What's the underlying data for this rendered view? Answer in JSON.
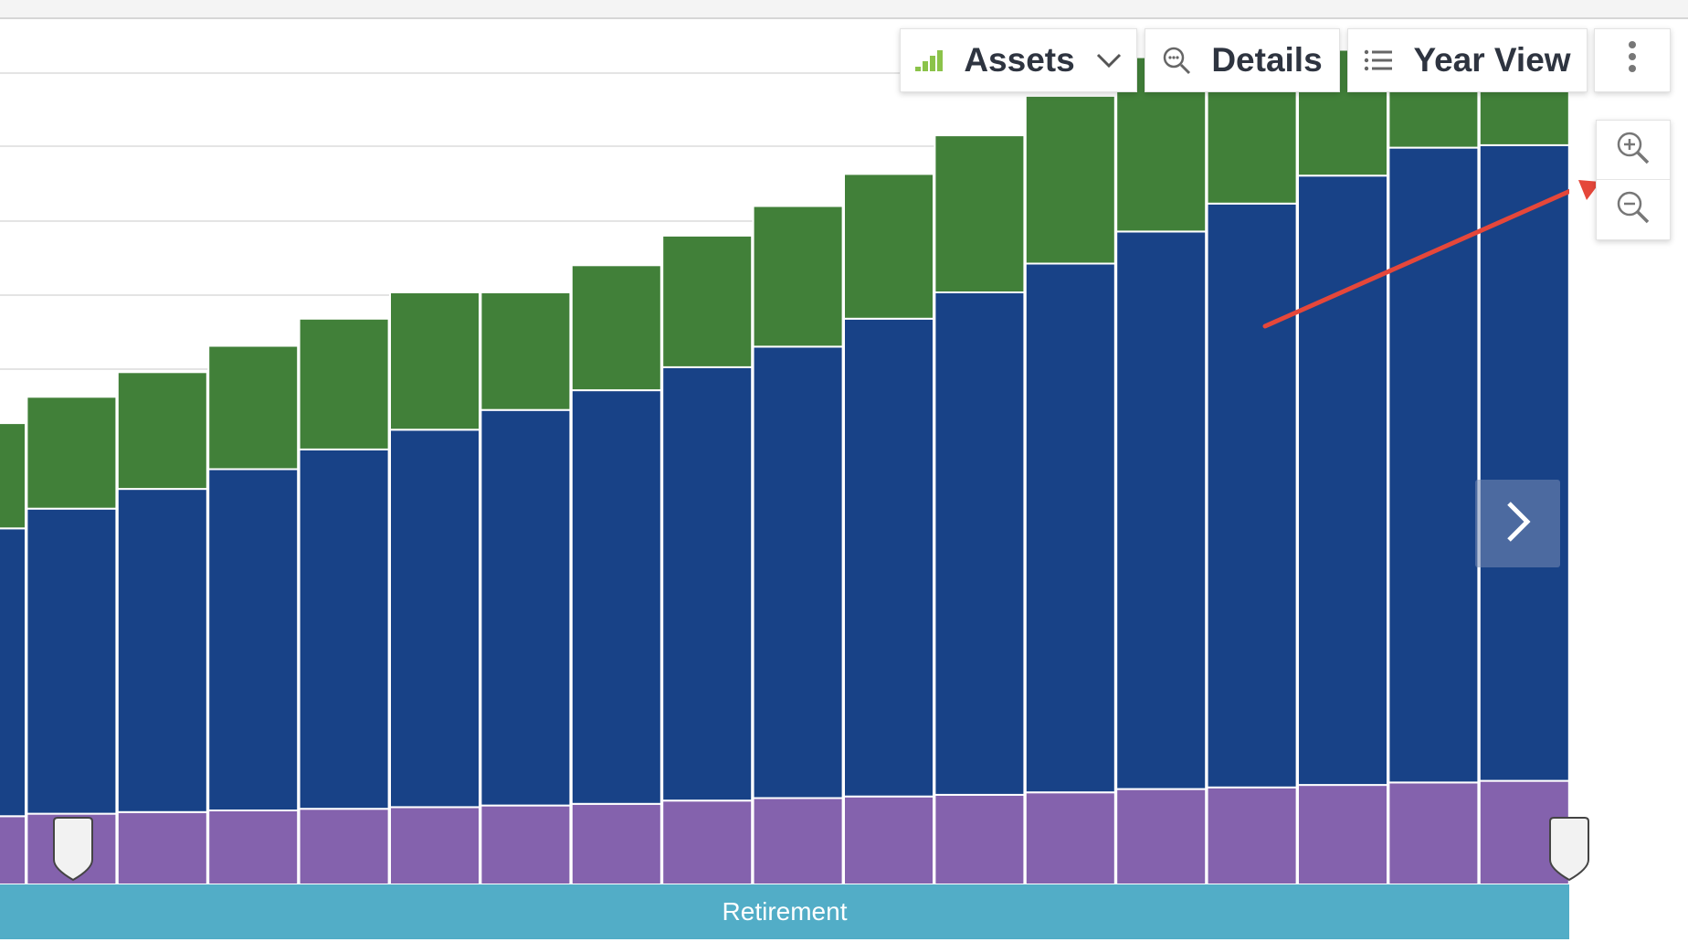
{
  "toolbar": {
    "assets_label": "Assets",
    "details_label": "Details",
    "yearview_label": "Year View"
  },
  "icons": {
    "assets": "bar-chart-icon",
    "assets_dropdown": "chevron-down-icon",
    "details": "magnifier-dots-icon",
    "yearview": "list-icon",
    "more": "vertical-ellipsis-icon",
    "zoom_in": "zoom-in-icon",
    "zoom_out": "zoom-out-icon",
    "next": "chevron-right-icon"
  },
  "phase_band": {
    "label": "Retirement"
  },
  "colors": {
    "green": "#418039",
    "blue": "#184287",
    "purple": "#8462ad",
    "band": "#52adc7",
    "annotation": "#e5473a"
  },
  "chart_data": {
    "type": "bar",
    "stacked": true,
    "grid": true,
    "ylim": [
      0,
      100
    ],
    "series": [
      {
        "color": "#8462ad",
        "values": [
          8.3,
          8.6,
          8.8,
          9.0,
          9.2,
          9.4,
          9.6,
          9.8,
          10.2,
          10.5,
          10.7,
          10.9,
          11.2,
          11.6,
          11.8,
          12.1,
          12.4,
          12.6
        ]
      },
      {
        "color": "#184287",
        "values": [
          35.0,
          37.1,
          39.3,
          41.5,
          43.7,
          45.9,
          48.1,
          50.3,
          52.7,
          54.9,
          58.1,
          61.1,
          64.3,
          67.8,
          71.0,
          74.1,
          77.2,
          77.3
        ]
      },
      {
        "color": "#418039",
        "values": [
          12.8,
          13.6,
          14.2,
          15.0,
          15.9,
          16.7,
          14.3,
          15.2,
          16.0,
          17.1,
          17.6,
          19.1,
          20.4,
          21.2,
          20.2,
          15.3,
          13.0,
          12.0
        ]
      }
    ]
  }
}
